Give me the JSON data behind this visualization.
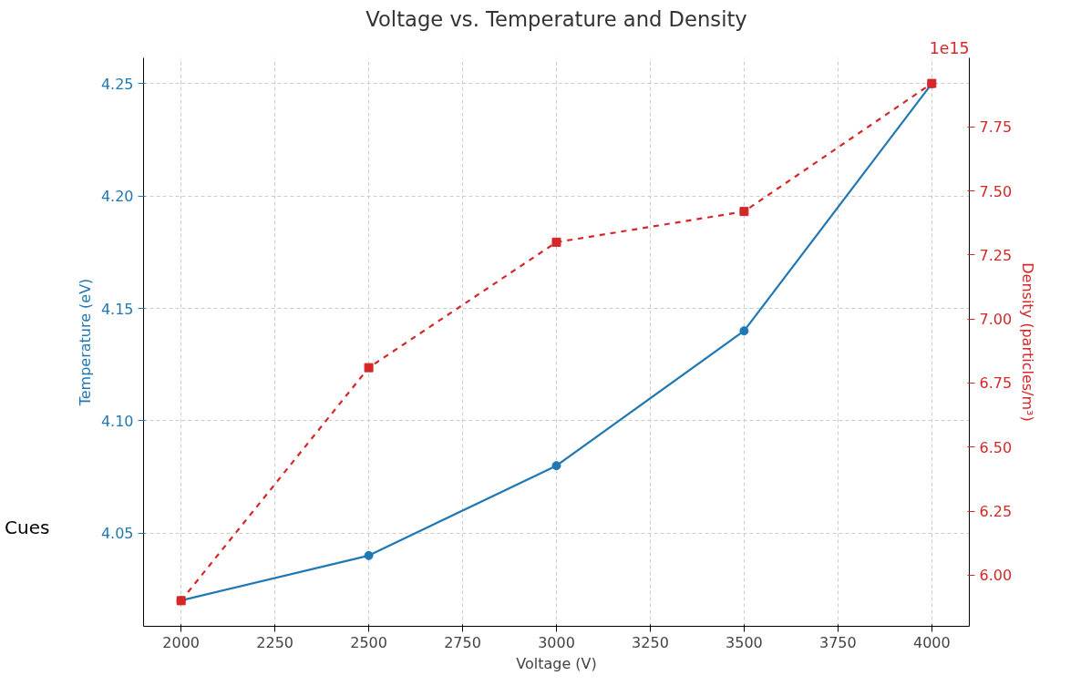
{
  "chart_data": {
    "type": "line",
    "title": "Voltage vs. Temperature and Density",
    "xlabel": "Voltage (V)",
    "ylabel": "Temperature (eV)",
    "y2label": "Density (particles/m³)",
    "x": [
      2000,
      2500,
      3000,
      3500,
      4000
    ],
    "series": [
      {
        "color": "#1f77b4",
        "values": [
          4.02,
          4.04,
          4.08,
          4.14,
          4.25
        ],
        "marker": "circle",
        "line_style": "solid"
      },
      {
        "color": "#d62728",
        "values": [
          5.9,
          6.81,
          7.3,
          7.42,
          7.92
        ],
        "marker": "square",
        "line_style": "dashed",
        "axis": "y2"
      }
    ],
    "xlim": [
      1900,
      4100
    ],
    "xticks": [
      2000,
      2250,
      2500,
      2750,
      3000,
      3250,
      3500,
      3750,
      4000
    ],
    "ylim": [
      4.0085,
      4.2615
    ],
    "yticks": [
      {
        "value": 4.05,
        "label": "4.05"
      },
      {
        "value": 4.1,
        "label": "4.10"
      },
      {
        "value": 4.15,
        "label": "4.15"
      },
      {
        "value": 4.2,
        "label": "4.20"
      },
      {
        "value": 4.25,
        "label": "4.25"
      }
    ],
    "y2lim": [
      5.8,
      8.02
    ],
    "y2ticks": [
      {
        "value": 6,
        "label": "6.00"
      },
      6.25,
      {
        "value": 6.5,
        "label": "6.50"
      },
      6.75,
      {
        "value": 7,
        "label": "7.00"
      },
      7.25,
      {
        "value": 7.5,
        "label": "7.50"
      },
      7.75
    ],
    "annotations": [
      "1e15",
      "Cues"
    ],
    "grid": true
  }
}
